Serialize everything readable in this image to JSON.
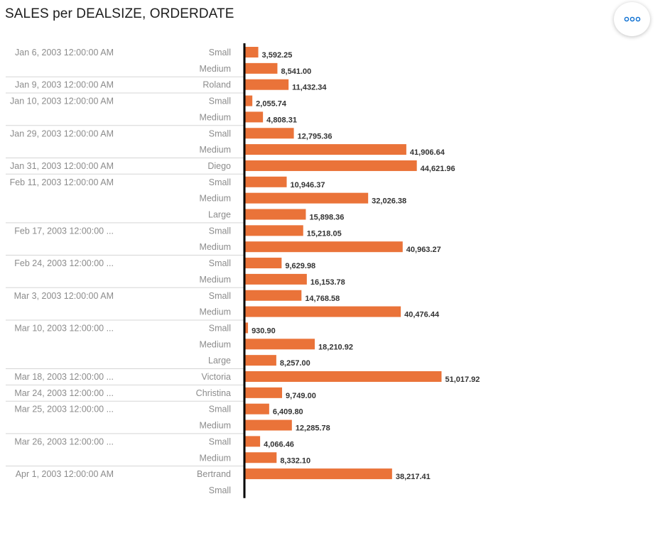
{
  "chart_data": {
    "type": "bar",
    "orientation": "horizontal",
    "title": "SALES per DEALSIZE, ORDERDATE",
    "bar_color": "#ea7339",
    "xlim": [
      0,
      57000
    ],
    "groups": [
      {
        "date": "Jan 6, 2003 12:00:00 AM",
        "rows": [
          {
            "label": "Small",
            "value": 3592.25,
            "value_label": "3,592.25"
          },
          {
            "label": "Medium",
            "value": 8541.0,
            "value_label": "8,541.00"
          }
        ]
      },
      {
        "date": "Jan 9, 2003 12:00:00 AM",
        "rows": [
          {
            "label": "Roland",
            "value": 11432.34,
            "value_label": "11,432.34"
          }
        ]
      },
      {
        "date": "Jan 10, 2003 12:00:00 AM",
        "rows": [
          {
            "label": "Small",
            "value": 2055.74,
            "value_label": "2,055.74"
          },
          {
            "label": "Medium",
            "value": 4808.31,
            "value_label": "4,808.31"
          }
        ]
      },
      {
        "date": "Jan 29, 2003 12:00:00 AM",
        "rows": [
          {
            "label": "Small",
            "value": 12795.36,
            "value_label": "12,795.36"
          },
          {
            "label": "Medium",
            "value": 41906.64,
            "value_label": "41,906.64"
          }
        ]
      },
      {
        "date": "Jan 31, 2003 12:00:00 AM",
        "rows": [
          {
            "label": "Diego",
            "value": 44621.96,
            "value_label": "44,621.96"
          }
        ]
      },
      {
        "date": "Feb 11, 2003 12:00:00 AM",
        "rows": [
          {
            "label": "Small",
            "value": 10946.37,
            "value_label": "10,946.37"
          },
          {
            "label": "Medium",
            "value": 32026.38,
            "value_label": "32,026.38"
          },
          {
            "label": "Large",
            "value": 15898.36,
            "value_label": "15,898.36"
          }
        ]
      },
      {
        "date": "Feb 17, 2003 12:00:00 ...",
        "rows": [
          {
            "label": "Small",
            "value": 15218.05,
            "value_label": "15,218.05"
          },
          {
            "label": "Medium",
            "value": 40963.27,
            "value_label": "40,963.27"
          }
        ]
      },
      {
        "date": "Feb 24, 2003 12:00:00 ...",
        "rows": [
          {
            "label": "Small",
            "value": 9629.98,
            "value_label": "9,629.98"
          },
          {
            "label": "Medium",
            "value": 16153.78,
            "value_label": "16,153.78"
          }
        ]
      },
      {
        "date": "Mar 3, 2003 12:00:00 AM",
        "rows": [
          {
            "label": "Small",
            "value": 14768.58,
            "value_label": "14,768.58"
          },
          {
            "label": "Medium",
            "value": 40476.44,
            "value_label": "40,476.44"
          }
        ]
      },
      {
        "date": "Mar 10, 2003 12:00:00 ...",
        "rows": [
          {
            "label": "Small",
            "value": 930.9,
            "value_label": "930.90"
          },
          {
            "label": "Medium",
            "value": 18210.92,
            "value_label": "18,210.92"
          },
          {
            "label": "Large",
            "value": 8257.0,
            "value_label": "8,257.00"
          }
        ]
      },
      {
        "date": "Mar 18, 2003 12:00:00 ...",
        "rows": [
          {
            "label": "Victoria",
            "value": 51017.92,
            "value_label": "51,017.92"
          }
        ]
      },
      {
        "date": "Mar 24, 2003 12:00:00 ...",
        "rows": [
          {
            "label": "Christina",
            "value": 9749.0,
            "value_label": "9,749.00"
          }
        ]
      },
      {
        "date": "Mar 25, 2003 12:00:00 ...",
        "rows": [
          {
            "label": "Small",
            "value": 6409.8,
            "value_label": "6,409.80"
          },
          {
            "label": "Medium",
            "value": 12285.78,
            "value_label": "12,285.78"
          }
        ]
      },
      {
        "date": "Mar 26, 2003 12:00:00 ...",
        "rows": [
          {
            "label": "Small",
            "value": 4066.46,
            "value_label": "4,066.46"
          },
          {
            "label": "Medium",
            "value": 8332.1,
            "value_label": "8,332.10"
          }
        ]
      },
      {
        "date": "Apr 1, 2003 12:00:00 AM",
        "rows": [
          {
            "label": "Bertrand",
            "value": 38217.41,
            "value_label": "38,217.41"
          },
          {
            "label": "Small",
            "value": null,
            "value_label": ""
          }
        ]
      }
    ]
  },
  "toolbar": {
    "more_icon": "more-horizontal-icon",
    "icon_color": "#0a6ed1"
  }
}
